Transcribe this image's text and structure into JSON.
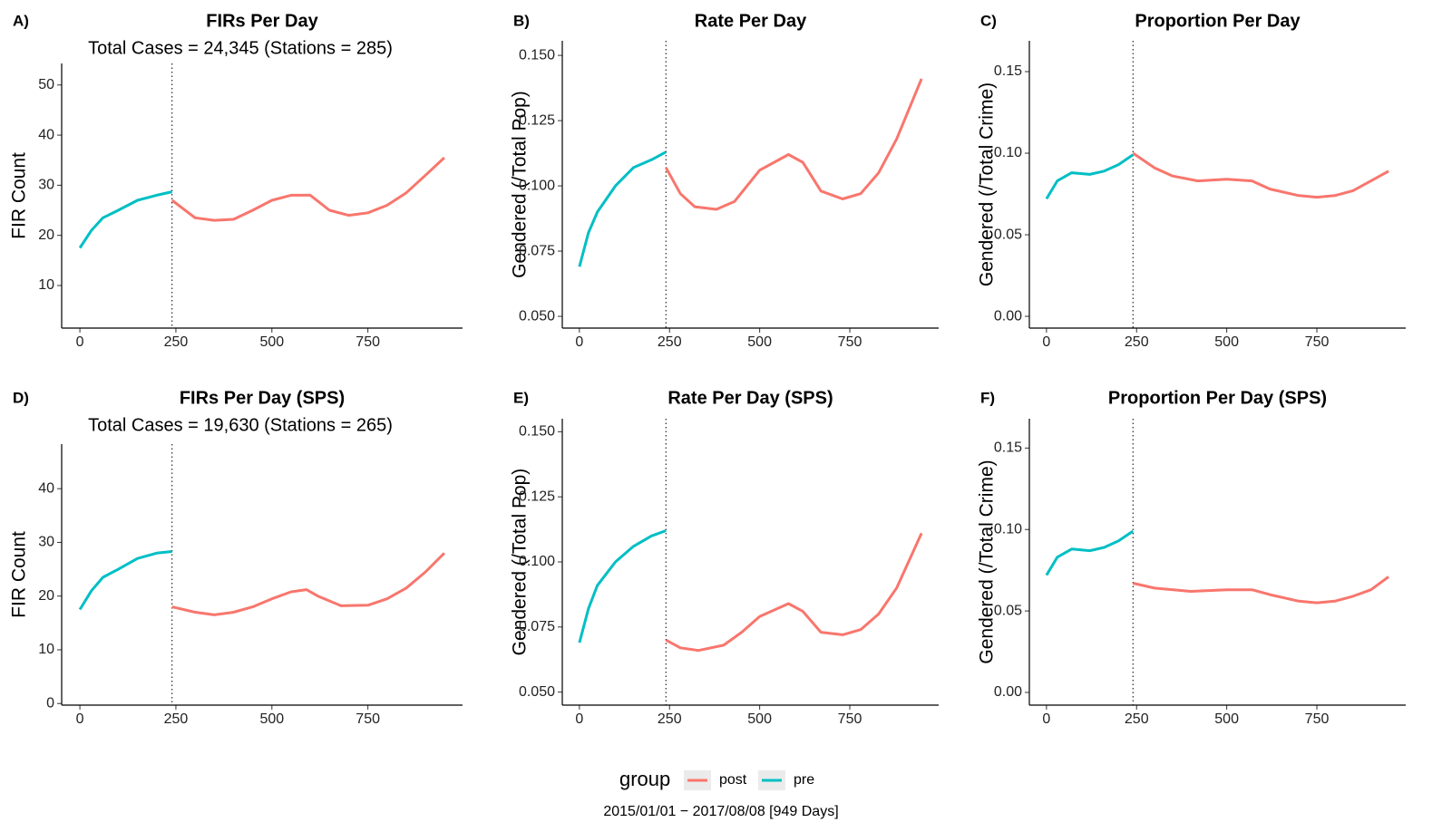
{
  "chart_data": [
    {
      "type": "line",
      "panel": "A)",
      "title": "FIRs Per Day",
      "subtitle": "Total Cases = 24,345 (Stations = 285)",
      "ylabel": "FIR Count",
      "xlim": [
        -47.45,
        996.45
      ],
      "xticks": [
        0,
        250,
        500,
        750
      ],
      "ylim": [
        1.5,
        54.3
      ],
      "yticks": [
        10,
        20,
        30,
        40,
        50
      ],
      "vline": 240,
      "series": [
        {
          "name": "post",
          "color": "#F8766D",
          "x": [
            240,
            300,
            350,
            400,
            450,
            500,
            550,
            600,
            650,
            700,
            750,
            800,
            850,
            900,
            949
          ],
          "values": [
            27,
            23.5,
            23,
            23.2,
            25,
            27,
            28,
            28,
            25,
            24,
            24.5,
            26,
            28.5,
            32,
            35.5
          ]
        },
        {
          "name": "pre",
          "color": "#00BFC4",
          "x": [
            0,
            30,
            60,
            100,
            150,
            200,
            240
          ],
          "values": [
            17.5,
            21,
            23.5,
            25,
            27,
            28,
            28.7
          ]
        }
      ]
    },
    {
      "type": "line",
      "panel": "B)",
      "title": "Rate Per Day",
      "ylabel": "Gendered (/Total Pop)",
      "xlim": [
        -47.45,
        996.45
      ],
      "xticks": [
        0,
        250,
        500,
        750
      ],
      "ylim": [
        0.0455,
        0.1556
      ],
      "yticks": [
        {
          "value": 0.05,
          "label": "0.050"
        },
        {
          "value": 0.075,
          "label": "0.075"
        },
        {
          "value": 0.1,
          "label": "0.100"
        },
        {
          "value": 0.125,
          "label": "0.125"
        },
        {
          "value": 0.15,
          "label": "0.150"
        }
      ],
      "vline": 240,
      "series": [
        {
          "name": "post",
          "color": "#F8766D",
          "x": [
            240,
            280,
            320,
            380,
            430,
            500,
            580,
            620,
            670,
            730,
            780,
            830,
            880,
            949
          ],
          "values": [
            0.107,
            0.097,
            0.092,
            0.091,
            0.094,
            0.106,
            0.112,
            0.109,
            0.098,
            0.095,
            0.097,
            0.105,
            0.118,
            0.141
          ]
        },
        {
          "name": "pre",
          "color": "#00BFC4",
          "x": [
            0,
            25,
            50,
            100,
            150,
            200,
            240
          ],
          "values": [
            0.069,
            0.082,
            0.09,
            0.1,
            0.107,
            0.11,
            0.113
          ]
        }
      ]
    },
    {
      "type": "line",
      "panel": "C)",
      "title": "Proportion Per Day",
      "ylabel": "Gendered (/Total Crime)",
      "xlim": [
        -47.45,
        996.45
      ],
      "xticks": [
        0,
        250,
        500,
        750
      ],
      "ylim": [
        -0.0072,
        0.1689
      ],
      "yticks": [
        {
          "value": 0,
          "label": "0.00"
        },
        {
          "value": 0.05,
          "label": "0.05"
        },
        {
          "value": 0.1,
          "label": "0.10"
        },
        {
          "value": 0.15,
          "label": "0.15"
        }
      ],
      "vline": 240,
      "series": [
        {
          "name": "post",
          "color": "#F8766D",
          "x": [
            240,
            300,
            350,
            420,
            500,
            570,
            620,
            700,
            750,
            800,
            850,
            900,
            949
          ],
          "values": [
            0.1,
            0.091,
            0.086,
            0.083,
            0.084,
            0.083,
            0.078,
            0.074,
            0.073,
            0.074,
            0.077,
            0.083,
            0.089
          ]
        },
        {
          "name": "pre",
          "color": "#00BFC4",
          "x": [
            0,
            30,
            70,
            120,
            160,
            200,
            240
          ],
          "values": [
            0.072,
            0.083,
            0.088,
            0.087,
            0.089,
            0.093,
            0.099
          ]
        }
      ]
    },
    {
      "type": "line",
      "panel": "D)",
      "title": "FIRs Per Day (SPS)",
      "subtitle": "Total Cases = 19,630 (Stations = 265)",
      "ylabel": "FIR Count",
      "xlim": [
        -47.45,
        996.45
      ],
      "xticks": [
        0,
        250,
        500,
        750
      ],
      "ylim": [
        -0.3,
        48.3
      ],
      "yticks": [
        0,
        10,
        20,
        30,
        40
      ],
      "vline": 240,
      "series": [
        {
          "name": "post",
          "color": "#F8766D",
          "x": [
            240,
            300,
            350,
            400,
            450,
            500,
            550,
            590,
            620,
            680,
            750,
            800,
            850,
            900,
            949
          ],
          "values": [
            18,
            17,
            16.5,
            17,
            18,
            19.5,
            20.8,
            21.2,
            20,
            18.2,
            18.3,
            19.5,
            21.5,
            24.5,
            28
          ]
        },
        {
          "name": "pre",
          "color": "#00BFC4",
          "x": [
            0,
            30,
            60,
            100,
            150,
            200,
            240
          ],
          "values": [
            17.5,
            21,
            23.5,
            25,
            27,
            28,
            28.3
          ]
        }
      ]
    },
    {
      "type": "line",
      "panel": "E)",
      "title": "Rate Per Day (SPS)",
      "ylabel": "Gendered (/Total Pop)",
      "xlim": [
        -47.45,
        996.45
      ],
      "xticks": [
        0,
        250,
        500,
        750
      ],
      "ylim": [
        0.045,
        0.155
      ],
      "yticks": [
        {
          "value": 0.05,
          "label": "0.050"
        },
        {
          "value": 0.075,
          "label": "0.075"
        },
        {
          "value": 0.1,
          "label": "0.100"
        },
        {
          "value": 0.125,
          "label": "0.125"
        },
        {
          "value": 0.15,
          "label": "0.150"
        }
      ],
      "vline": 240,
      "series": [
        {
          "name": "post",
          "color": "#F8766D",
          "x": [
            240,
            280,
            330,
            400,
            450,
            500,
            580,
            620,
            670,
            730,
            780,
            830,
            880,
            949
          ],
          "values": [
            0.07,
            0.067,
            0.066,
            0.068,
            0.073,
            0.079,
            0.084,
            0.081,
            0.073,
            0.072,
            0.074,
            0.08,
            0.09,
            0.111
          ]
        },
        {
          "name": "pre",
          "color": "#00BFC4",
          "x": [
            0,
            25,
            50,
            100,
            150,
            200,
            240
          ],
          "values": [
            0.069,
            0.082,
            0.091,
            0.1,
            0.106,
            0.11,
            0.112
          ]
        }
      ]
    },
    {
      "type": "line",
      "panel": "F)",
      "title": "Proportion Per Day (SPS)",
      "ylabel": "Gendered (/Total Crime)",
      "xlim": [
        -47.45,
        996.45
      ],
      "xticks": [
        0,
        250,
        500,
        750
      ],
      "ylim": [
        -0.0078,
        0.168
      ],
      "yticks": [
        {
          "value": 0,
          "label": "0.00"
        },
        {
          "value": 0.05,
          "label": "0.05"
        },
        {
          "value": 0.1,
          "label": "0.10"
        },
        {
          "value": 0.15,
          "label": "0.15"
        }
      ],
      "vline": 240,
      "series": [
        {
          "name": "post",
          "color": "#F8766D",
          "x": [
            240,
            300,
            400,
            500,
            570,
            620,
            700,
            750,
            800,
            850,
            900,
            949
          ],
          "values": [
            0.067,
            0.064,
            0.062,
            0.063,
            0.063,
            0.06,
            0.056,
            0.055,
            0.056,
            0.059,
            0.063,
            0.071
          ]
        },
        {
          "name": "pre",
          "color": "#00BFC4",
          "x": [
            0,
            30,
            70,
            120,
            160,
            200,
            240
          ],
          "values": [
            0.072,
            0.083,
            0.088,
            0.087,
            0.089,
            0.093,
            0.099
          ]
        }
      ]
    }
  ],
  "legend_title": "group",
  "caption": "2015/01/01 − 2017/08/08 [949 Days]"
}
